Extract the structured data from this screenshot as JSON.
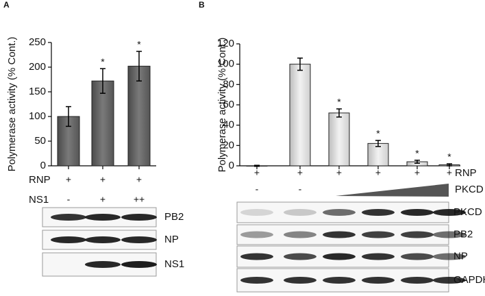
{
  "chart_data": [
    {
      "type": "bar",
      "panel": "A",
      "ylabel": "Polymerase activity (% Cont.)",
      "categories": [
        null,
        null,
        null
      ],
      "values": [
        100,
        172,
        202
      ],
      "errors": [
        20,
        25,
        30
      ],
      "significance": [
        null,
        "*",
        "*"
      ],
      "ylim": [
        0,
        250
      ],
      "yticks": [
        0,
        50,
        100,
        150,
        200,
        250
      ],
      "color": "#6b6b6b",
      "rows": [
        {
          "label": "RNP",
          "marks": [
            "+",
            "+",
            "+"
          ]
        }
      ]
    },
    {
      "type": "bar",
      "panel": "B",
      "ylabel": "Polymerase activity (% Cont.)",
      "categories": [
        null,
        null,
        null,
        null,
        null,
        null
      ],
      "values": [
        0,
        100,
        52,
        22,
        4,
        1
      ],
      "errors": [
        0.5,
        6,
        4,
        3,
        1.5,
        1
      ],
      "significance": [
        null,
        null,
        "*",
        "*",
        "*",
        "*"
      ],
      "ylim": [
        0,
        120
      ],
      "yticks": [
        0,
        20,
        40,
        60,
        80,
        100,
        120
      ],
      "color": "#dcdcdc",
      "rows": [
        {
          "label": "RNP",
          "marks": [
            "+",
            "+",
            "+",
            "+",
            "+",
            "+"
          ]
        }
      ]
    }
  ],
  "blots": [
    {
      "rows": [
        {
          "label": "NS1",
          "marks": [
            "-",
            "+",
            "++"
          ]
        }
      ],
      "bands": [
        "PB2",
        "NP",
        "NS1"
      ]
    },
    {
      "rows": [
        {
          "label": "PKCD",
          "marks": [
            "-",
            "-"
          ]
        }
      ],
      "bands": [
        "PKCD",
        "PB2",
        "NP",
        "GAPDH"
      ]
    }
  ]
}
